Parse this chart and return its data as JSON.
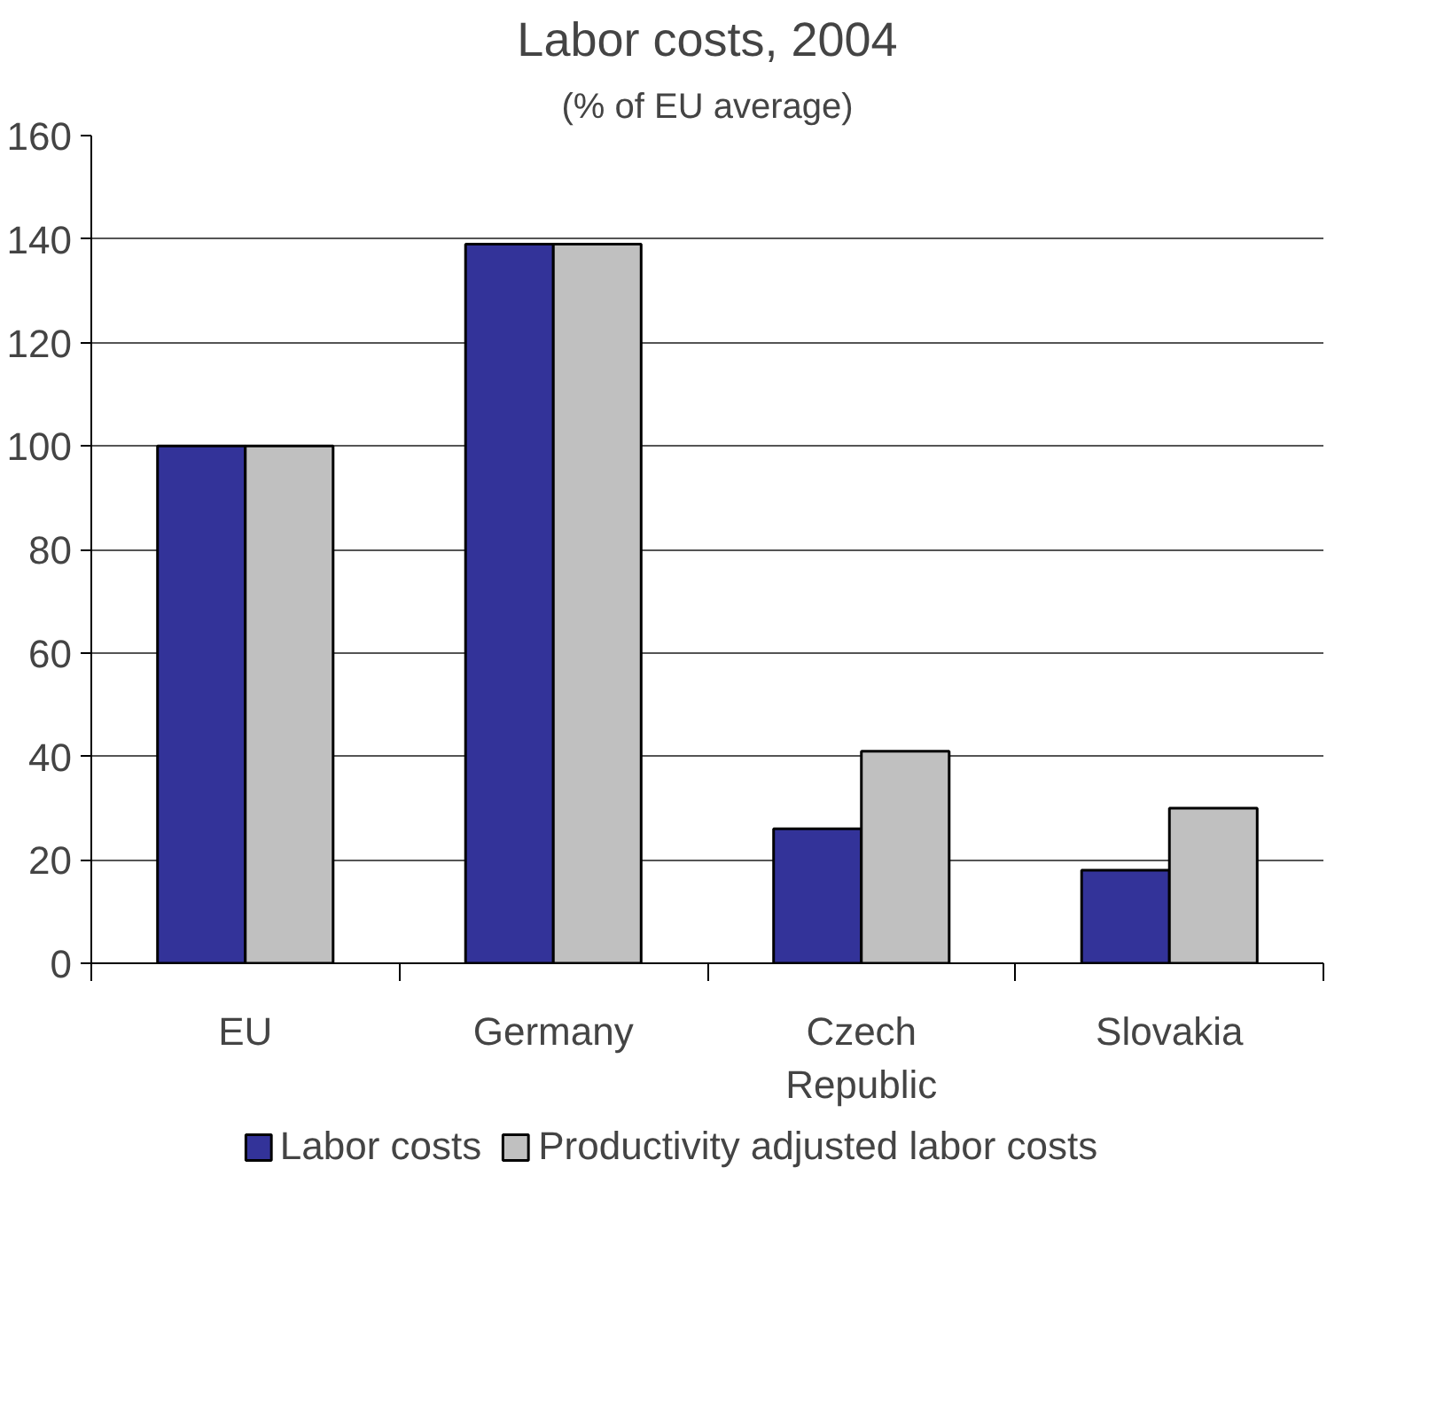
{
  "chart_data": {
    "type": "bar",
    "title": "Labor costs, 2004",
    "subtitle": "(% of EU average)",
    "categories": [
      "EU",
      "Germany",
      "Czech Republic",
      "Slovakia"
    ],
    "series": [
      {
        "name": "Labor costs",
        "color": "#333399",
        "values": [
          100,
          139,
          26,
          18
        ]
      },
      {
        "name": "Productivity adjusted labor costs",
        "color": "#c0c0c0",
        "values": [
          100,
          139,
          41,
          30
        ]
      }
    ],
    "ylim": [
      0,
      160
    ],
    "yticks": [
      0,
      20,
      40,
      60,
      80,
      100,
      120,
      140,
      160
    ],
    "grid": "y",
    "legend": "bottom"
  }
}
